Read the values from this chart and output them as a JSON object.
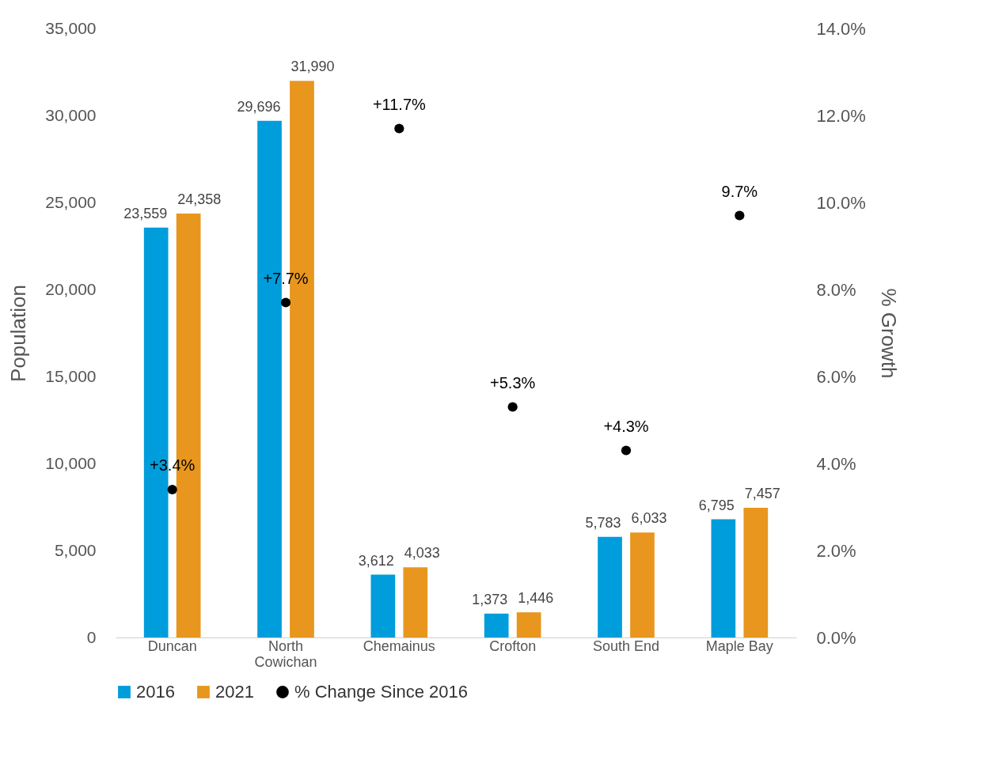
{
  "chart_data": {
    "type": "bar",
    "categories": [
      "Duncan",
      "North Cowichan",
      "Chemainus",
      "Crofton",
      "South End",
      "Maple Bay"
    ],
    "series": [
      {
        "name": "2016",
        "color": "#009ddc",
        "values": [
          23559,
          29696,
          3612,
          1373,
          5783,
          6795
        ],
        "value_labels": [
          "23,559",
          "29,696",
          "3,612",
          "1,373",
          "5,783",
          "6,795"
        ]
      },
      {
        "name": "2021",
        "color": "#e8961e",
        "values": [
          24358,
          31990,
          4033,
          1446,
          6033,
          7457
        ],
        "value_labels": [
          "24,358",
          "31,990",
          "4,033",
          "1,446",
          "6,033",
          "7,457"
        ]
      },
      {
        "name": "% Change Since 2016",
        "type": "scatter",
        "axis": "y2",
        "color": "#000000",
        "values": [
          3.4,
          7.7,
          11.7,
          5.3,
          4.3,
          9.7
        ],
        "value_labels": [
          "+3.4%",
          "+7.7%",
          "+11.7%",
          "+5.3%",
          "+4.3%",
          "9.7%"
        ]
      }
    ],
    "ylabel": "Population",
    "y2label": "% Growth",
    "ylim": [
      0,
      35000
    ],
    "yticks": [
      0,
      {
        "value": 5000,
        "label": "5,000"
      },
      {
        "value": 10000,
        "label": "10,000"
      },
      {
        "value": 15000,
        "label": "15,000"
      },
      {
        "value": 20000,
        "label": "20,000"
      },
      {
        "value": 25000,
        "label": "25,000"
      },
      {
        "value": 30000,
        "label": "30,000"
      },
      {
        "value": 35000,
        "label": "35,000"
      }
    ],
    "y2lim": [
      0,
      14
    ],
    "y2ticks": [
      {
        "value": 0,
        "label": "0.0%"
      },
      {
        "value": 2,
        "label": "2.0%"
      },
      {
        "value": 4,
        "label": "4.0%"
      },
      {
        "value": 6,
        "label": "6.0%"
      },
      {
        "value": 8,
        "label": "8.0%"
      },
      {
        "value": 10,
        "label": "10.0%"
      },
      {
        "value": 12,
        "label": "12.0%"
      },
      {
        "value": 14,
        "label": "14.0%"
      }
    ],
    "legend": "bottom",
    "grid": false,
    "marker": "circle"
  }
}
